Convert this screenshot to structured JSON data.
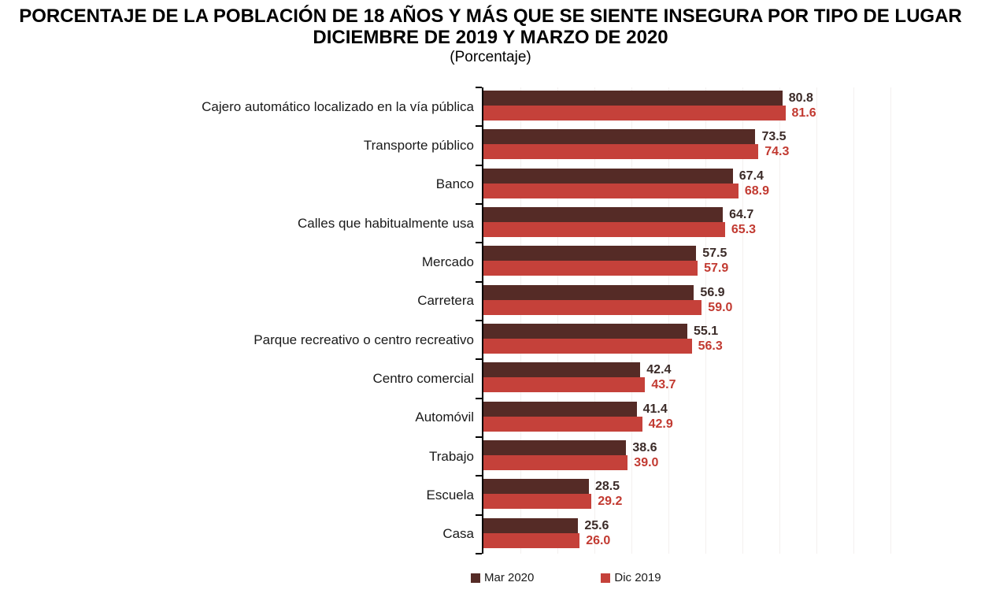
{
  "header": {
    "title_line1": "PORCENTAJE DE LA POBLACIÓN DE 18 AÑOS Y MÁS QUE SE SIENTE INSEGURA POR TIPO DE LUGAR",
    "title_line2": "DICIEMBRE DE 2019 Y MARZO DE 2020",
    "subtitle": "(Porcentaje)"
  },
  "chart_data": {
    "type": "bar",
    "orientation": "horizontal",
    "title": "PORCENTAJE DE LA POBLACIÓN DE 18 AÑOS Y MÁS QUE SE SIENTE INSEGURA POR TIPO DE LUGAR — DICIEMBRE DE 2019 Y MARZO DE 2020 (Porcentaje)",
    "xlim": [
      0,
      110
    ],
    "value_labels": true,
    "value_decimals": 1,
    "gridlines": "faint-vertical",
    "legend_position": "bottom",
    "axis_color": "#000000",
    "categories": [
      "Cajero automático localizado en la vía pública",
      "Transporte público",
      "Banco",
      "Calles que habitualmente usa",
      "Mercado",
      "Carretera",
      "Parque recreativo o centro recreativo",
      "Centro comercial",
      "Automóvil",
      "Trabajo",
      "Escuela",
      "Casa"
    ],
    "series": [
      {
        "name": "Mar 2020",
        "color": "#552B26",
        "label_color": "#3B2B28",
        "values": [
          80.8,
          73.5,
          67.4,
          64.7,
          57.5,
          56.9,
          55.1,
          42.4,
          41.4,
          38.6,
          28.5,
          25.6
        ]
      },
      {
        "name": "Dic 2019",
        "color": "#C5413A",
        "label_color": "#C23A31",
        "values": [
          81.6,
          74.3,
          68.9,
          65.3,
          57.9,
          59.0,
          56.3,
          43.7,
          42.9,
          39.0,
          29.2,
          26.0
        ]
      }
    ]
  }
}
